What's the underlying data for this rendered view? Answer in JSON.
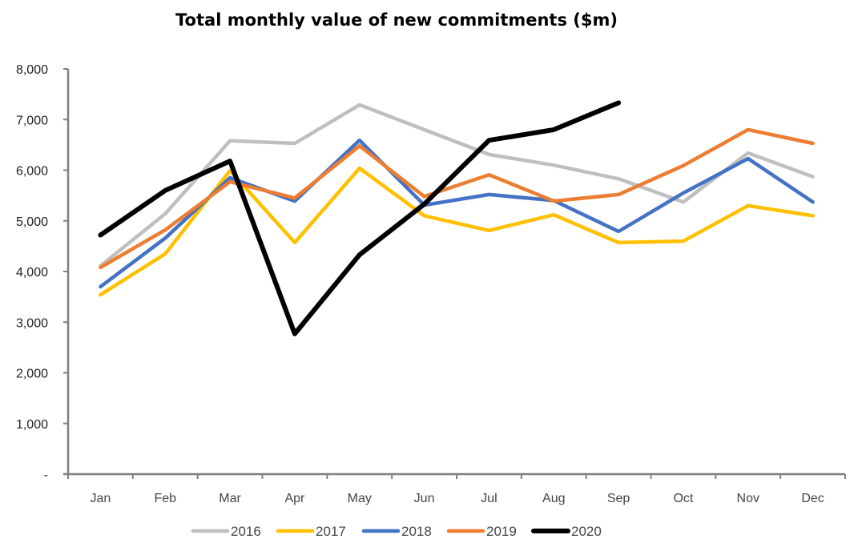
{
  "chart_data": {
    "type": "line",
    "title": "Total monthly value of new commitments ($m)",
    "xlabel": "",
    "ylabel": "",
    "categories": [
      "Jan",
      "Feb",
      "Mar",
      "Apr",
      "May",
      "Jun",
      "Jul",
      "Aug",
      "Sep",
      "Oct",
      "Nov",
      "Dec"
    ],
    "ylim": [
      0,
      8000
    ],
    "yticks": [
      0,
      1000,
      2000,
      3000,
      4000,
      5000,
      6000,
      7000,
      8000
    ],
    "ytick_labels": [
      "-",
      "1,000",
      "2,000",
      "3,000",
      "4,000",
      "5,000",
      "6,000",
      "7,000",
      "8,000"
    ],
    "grid": false,
    "legend_position": "bottom",
    "series": [
      {
        "name": "2016",
        "color": "#BFBFBF",
        "values": [
          4110,
          5140,
          6580,
          6530,
          7290,
          6800,
          6310,
          6100,
          5830,
          5370,
          6340,
          5870
        ]
      },
      {
        "name": "2017",
        "color": "#FFC000",
        "values": [
          3540,
          4350,
          5990,
          4570,
          6040,
          5100,
          4810,
          5120,
          4570,
          4600,
          5300,
          5100
        ]
      },
      {
        "name": "2018",
        "color": "#4472C4",
        "values": [
          3700,
          4660,
          5850,
          5390,
          6590,
          5310,
          5520,
          5400,
          4790,
          5550,
          6230,
          5370
        ]
      },
      {
        "name": "2019",
        "color": "#ED7D31",
        "values": [
          4080,
          4820,
          5770,
          5450,
          6480,
          5480,
          5910,
          5390,
          5520,
          6090,
          6800,
          6530
        ]
      },
      {
        "name": "2020",
        "color": "#000000",
        "values": [
          4720,
          5600,
          6180,
          2770,
          4330,
          5330,
          6590,
          6800,
          7330,
          null,
          null,
          null
        ]
      }
    ]
  }
}
